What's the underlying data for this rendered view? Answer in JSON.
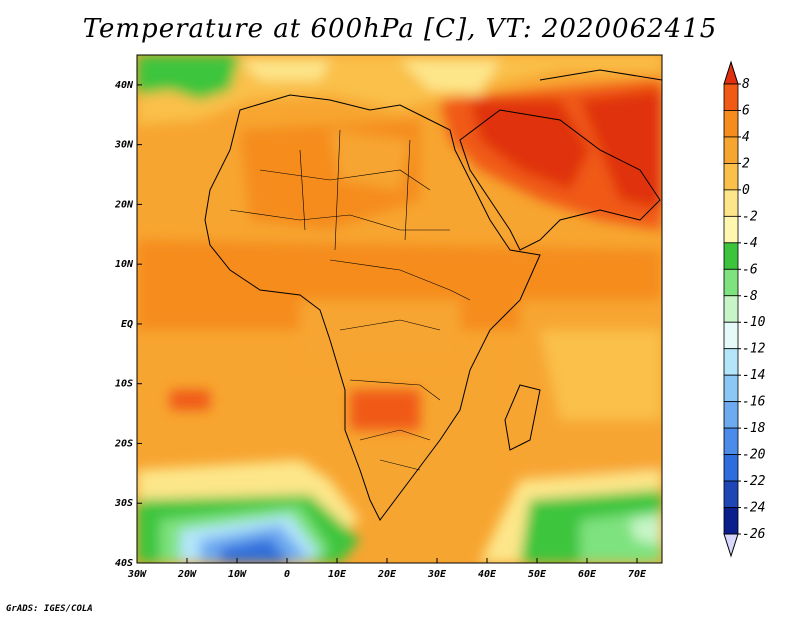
{
  "title": "Temperature at 600hPa [C], VT: 2020062415",
  "credit": "GrADS: IGES/COLA",
  "map": {
    "lat_labels": [
      "40N",
      "30N",
      "20N",
      "10N",
      "EQ",
      "10S",
      "20S",
      "30S",
      "40S"
    ],
    "lon_labels": [
      "30W",
      "20W",
      "10W",
      "0",
      "10E",
      "20E",
      "30E",
      "40E",
      "50E",
      "60E",
      "70E"
    ],
    "lon_range": [
      -30,
      75
    ],
    "lat_range": [
      -40,
      45
    ]
  },
  "colorbar": {
    "labels": [
      "8",
      "6",
      "4",
      "2",
      "0",
      "-2",
      "-4",
      "-6",
      "-8",
      "-10",
      "-12",
      "-14",
      "-16",
      "-18",
      "-20",
      "-22",
      "-24",
      "-26"
    ],
    "colors": [
      "#e03010",
      "#f05a14",
      "#f58c1e",
      "#f7a531",
      "#fac04a",
      "#fde68a",
      "#fff6b0",
      "#3cc53c",
      "#7ee27e",
      "#c8f5c8",
      "#e6fafa",
      "#b4e6fa",
      "#8cc8f5",
      "#6eaaf0",
      "#4b8ceb",
      "#2d6edc",
      "#1e46b4",
      "#0a1e8c",
      "#d8d8ff"
    ]
  }
}
